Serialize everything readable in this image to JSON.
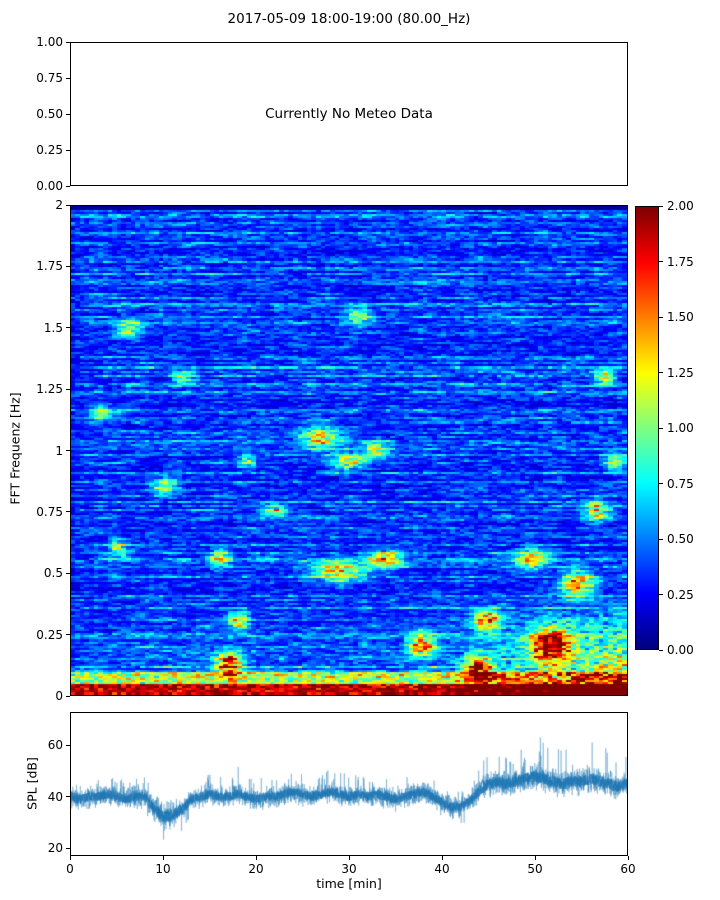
{
  "title": "2017-05-09 18:00-19:00 (80.00_Hz)",
  "chart_data": [
    {
      "type": "empty",
      "name": "meteo-panel",
      "annotation": "Currently No Meteo Data",
      "ylim": [
        0,
        1
      ],
      "yticks": [
        "0.00",
        "0.25",
        "0.50",
        "0.75",
        "1.00"
      ]
    },
    {
      "type": "heatmap",
      "name": "fft-spectrogram",
      "ylabel": "FFT Frequenz [Hz]",
      "xlim": [
        0,
        60
      ],
      "ylim": [
        0,
        2
      ],
      "yticks": [
        "0",
        "0.25",
        "0.5",
        "0.75",
        "1",
        "1.25",
        "1.5",
        "1.75",
        "2"
      ],
      "colormap": "jet",
      "colorbar": {
        "lim": [
          0,
          2
        ],
        "ticks": [
          "0.00",
          "0.25",
          "0.50",
          "0.75",
          "1.00",
          "1.25",
          "1.50",
          "1.75",
          "2.00"
        ]
      },
      "grid": {
        "nx": 120,
        "ny": 240
      },
      "seed": 20170509,
      "pattern": {
        "description": "Mostly low-amplitude blue noise with short horizontal streaks; near-black row at 2 Hz; strong red band below 0.05 Hz across all times; increasing orange/red energy below 0.45 Hz after 38 min; scattered green/yellow patches.",
        "background_mean": 0.35,
        "bottom_band": {
          "freq_below": 0.05,
          "value": 1.8
        },
        "low_freq_ramp": {
          "freq_below": 0.45,
          "time_after": 38,
          "max_add": 1.5
        },
        "hotspots": [
          {
            "t": 3,
            "f": 1.15,
            "w": 1.5,
            "h": 0.05,
            "amp": 0.7
          },
          {
            "t": 6,
            "f": 1.5,
            "w": 2,
            "h": 0.05,
            "amp": 0.8
          },
          {
            "t": 5,
            "f": 0.6,
            "w": 1.5,
            "h": 0.05,
            "amp": 0.8
          },
          {
            "t": 10,
            "f": 0.85,
            "w": 2,
            "h": 0.05,
            "amp": 0.8
          },
          {
            "t": 12,
            "f": 1.3,
            "w": 1.5,
            "h": 0.04,
            "amp": 0.7
          },
          {
            "t": 16,
            "f": 0.55,
            "w": 1.5,
            "h": 0.05,
            "amp": 0.9
          },
          {
            "t": 17,
            "f": 0.12,
            "w": 2,
            "h": 0.07,
            "amp": 1.5
          },
          {
            "t": 18,
            "f": 0.3,
            "w": 1.5,
            "h": 0.05,
            "amp": 1.1
          },
          {
            "t": 19,
            "f": 0.95,
            "w": 1.5,
            "h": 0.04,
            "amp": 0.7
          },
          {
            "t": 22,
            "f": 0.75,
            "w": 2,
            "h": 0.04,
            "amp": 0.8
          },
          {
            "t": 27,
            "f": 1.05,
            "w": 3,
            "h": 0.07,
            "amp": 0.9
          },
          {
            "t": 30,
            "f": 0.95,
            "w": 2.5,
            "h": 0.05,
            "amp": 0.9
          },
          {
            "t": 29,
            "f": 0.5,
            "w": 4,
            "h": 0.06,
            "amp": 1.0
          },
          {
            "t": 34,
            "f": 0.55,
            "w": 2.5,
            "h": 0.05,
            "amp": 1.1
          },
          {
            "t": 33,
            "f": 1.0,
            "w": 2,
            "h": 0.05,
            "amp": 0.8
          },
          {
            "t": 31,
            "f": 1.55,
            "w": 2,
            "h": 0.05,
            "amp": 0.7
          },
          {
            "t": 38,
            "f": 0.2,
            "w": 2,
            "h": 0.07,
            "amp": 1.2
          },
          {
            "t": 44,
            "f": 0.1,
            "w": 2,
            "h": 0.07,
            "amp": 1.4
          },
          {
            "t": 45,
            "f": 0.3,
            "w": 2,
            "h": 0.06,
            "amp": 1.2
          },
          {
            "t": 50,
            "f": 0.55,
            "w": 2.5,
            "h": 0.06,
            "amp": 1.0
          },
          {
            "t": 52,
            "f": 0.2,
            "w": 3,
            "h": 0.1,
            "amp": 1.5
          },
          {
            "t": 55,
            "f": 0.45,
            "w": 2.5,
            "h": 0.07,
            "amp": 1.3
          },
          {
            "t": 57,
            "f": 0.75,
            "w": 2,
            "h": 0.06,
            "amp": 1.0
          },
          {
            "t": 58,
            "f": 1.3,
            "w": 1.5,
            "h": 0.05,
            "amp": 0.8
          },
          {
            "t": 59,
            "f": 0.95,
            "w": 1.5,
            "h": 0.05,
            "amp": 0.9
          }
        ]
      }
    },
    {
      "type": "line",
      "name": "spl-timeseries",
      "ylabel": "SPL [dB]",
      "xlabel": "time [min]",
      "xlim": [
        0,
        60
      ],
      "ylim": [
        17,
        73
      ],
      "yticks": [
        "20",
        "40",
        "60"
      ],
      "xticks": [
        "0",
        "10",
        "20",
        "30",
        "40",
        "50",
        "60"
      ],
      "color": "#1f77b4",
      "seed": 777,
      "mean": [
        40,
        39,
        40,
        40,
        41,
        40,
        39,
        40,
        40,
        35,
        32,
        33,
        35,
        39,
        40,
        41,
        40,
        40,
        41,
        40,
        39,
        40,
        40,
        41,
        42,
        41,
        40,
        41,
        42,
        41,
        40,
        41,
        40,
        41,
        40,
        39,
        40,
        41,
        42,
        40,
        38,
        36,
        36,
        38,
        42,
        45,
        46,
        45,
        46,
        47,
        48,
        47,
        46,
        45,
        46,
        46,
        47,
        46,
        45,
        44,
        45
      ],
      "spread": [
        4,
        4,
        4,
        4,
        4,
        4,
        4,
        4,
        4,
        5,
        5,
        5,
        5,
        4,
        4,
        4,
        4,
        4,
        4,
        4,
        4,
        4,
        4,
        4,
        4,
        4,
        4,
        4,
        4,
        4,
        4,
        4,
        4,
        4,
        4,
        4,
        4,
        4,
        4,
        4,
        4,
        4,
        4,
        4,
        5,
        5,
        5,
        5,
        5,
        5,
        5,
        5,
        5,
        5,
        5,
        5,
        5,
        5,
        5,
        5,
        5
      ],
      "spike_up": [
        8,
        8,
        8,
        8,
        8,
        8,
        8,
        8,
        8,
        6,
        6,
        6,
        6,
        8,
        8,
        8,
        8,
        14,
        12,
        8,
        8,
        8,
        8,
        8,
        8,
        8,
        9,
        9,
        9,
        9,
        9,
        8,
        8,
        8,
        8,
        8,
        8,
        8,
        8,
        8,
        6,
        6,
        6,
        6,
        10,
        12,
        12,
        12,
        14,
        14,
        22,
        20,
        16,
        14,
        15,
        16,
        20,
        18,
        14,
        12,
        16
      ],
      "spike_down": [
        5,
        5,
        5,
        5,
        5,
        5,
        5,
        5,
        6,
        10,
        10,
        10,
        9,
        6,
        5,
        5,
        5,
        5,
        5,
        5,
        5,
        5,
        5,
        5,
        5,
        5,
        5,
        5,
        5,
        5,
        5,
        5,
        5,
        5,
        5,
        5,
        5,
        5,
        5,
        5,
        6,
        8,
        8,
        7,
        5,
        5,
        5,
        5,
        5,
        5,
        6,
        6,
        6,
        6,
        6,
        6,
        6,
        6,
        6,
        6,
        6
      ]
    }
  ]
}
